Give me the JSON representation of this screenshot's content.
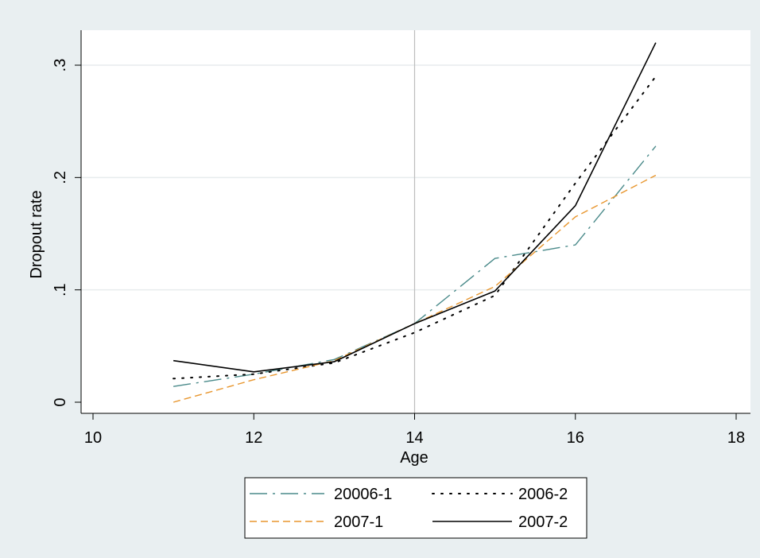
{
  "chart_data": {
    "type": "line",
    "xlabel": "Age",
    "ylabel": "Dropout rate",
    "xlim": [
      10,
      18
    ],
    "ylim": [
      0,
      0.33
    ],
    "x_ticks": [
      10,
      12,
      14,
      16,
      18
    ],
    "x_tick_labels": [
      "10",
      "12",
      "14",
      "16",
      "18"
    ],
    "y_ticks": [
      0,
      0.1,
      0.2,
      0.3
    ],
    "y_tick_labels": [
      "0",
      ".1",
      ".2",
      ".3"
    ],
    "grid": "horizontal",
    "reference_line_x": 14,
    "legend_position": "bottom",
    "series": [
      {
        "name": "20006-1",
        "style": "dash-dot",
        "color": "#4a8a8a",
        "x": [
          11,
          12,
          13,
          14,
          15,
          16,
          17
        ],
        "y": [
          0.014,
          0.025,
          0.038,
          0.07,
          0.128,
          0.14,
          0.228
        ]
      },
      {
        "name": "2006-2",
        "style": "dotted",
        "color": "#000000",
        "x": [
          11,
          12,
          13,
          14,
          15,
          16,
          17
        ],
        "y": [
          0.021,
          0.025,
          0.035,
          0.062,
          0.095,
          0.195,
          0.29
        ]
      },
      {
        "name": "2007-1",
        "style": "dashed",
        "color": "#e8962e",
        "x": [
          11,
          12,
          13,
          14,
          15,
          16,
          17
        ],
        "y": [
          0.0,
          0.02,
          0.037,
          0.07,
          0.103,
          0.165,
          0.202
        ]
      },
      {
        "name": "2007-2",
        "style": "solid",
        "color": "#000000",
        "x": [
          11,
          12,
          13,
          14,
          15,
          16,
          17
        ],
        "y": [
          0.037,
          0.027,
          0.036,
          0.07,
          0.099,
          0.175,
          0.32
        ]
      }
    ]
  },
  "colors": {
    "outer_background": "#e9eff1",
    "plot_background": "#ffffff",
    "gridline": "#e7ecee",
    "reference_line": "#bdbdbd",
    "axis": "#000000"
  }
}
